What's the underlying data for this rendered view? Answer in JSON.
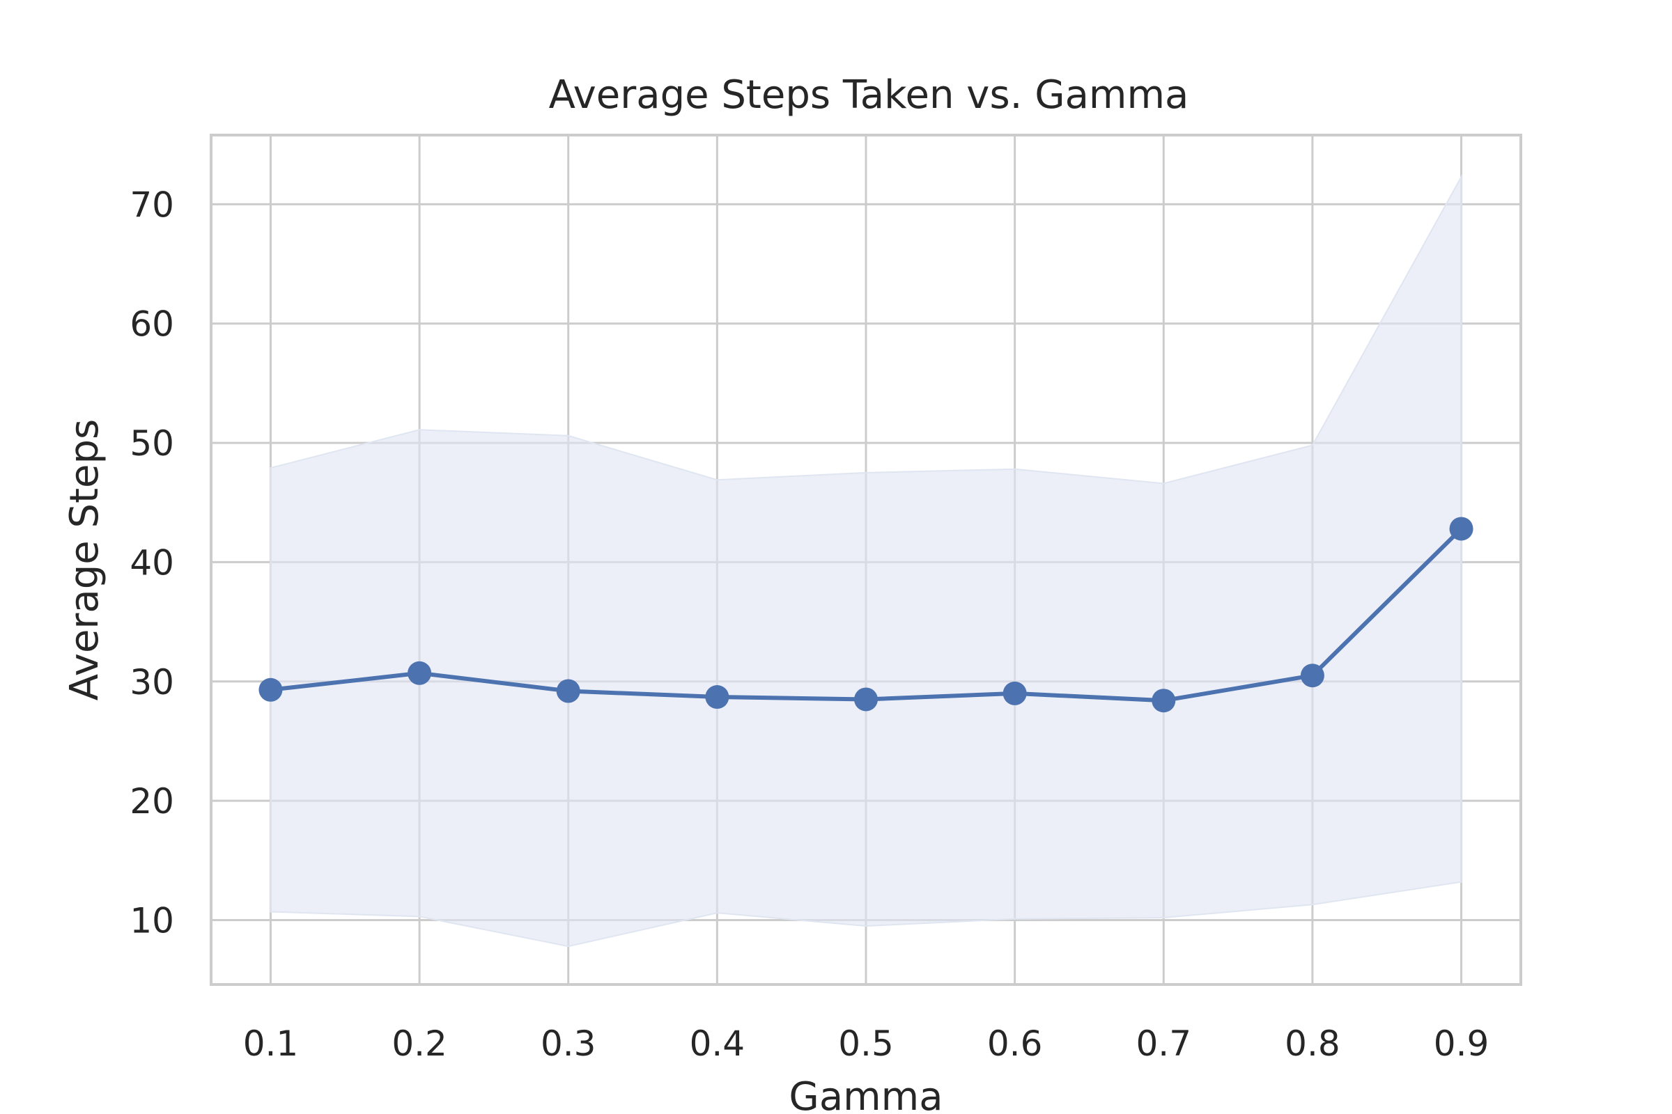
{
  "chart_data": {
    "type": "line",
    "title": "Average Steps Taken vs. Gamma",
    "xlabel": "Gamma",
    "ylabel": "Average Steps",
    "x": [
      0.1,
      0.2,
      0.3,
      0.4,
      0.5,
      0.6,
      0.7,
      0.8,
      0.9
    ],
    "x_tick_labels": [
      "0.1",
      "0.2",
      "0.3",
      "0.4",
      "0.5",
      "0.6",
      "0.7",
      "0.8",
      "0.9"
    ],
    "xlim": [
      0.06,
      0.94
    ],
    "y_ticks": [
      10,
      20,
      30,
      40,
      50,
      60,
      70
    ],
    "y_tick_labels": [
      "10",
      "20",
      "30",
      "40",
      "50",
      "60",
      "70"
    ],
    "ylim": [
      4.6,
      75.8
    ],
    "grid": true,
    "series": [
      {
        "values": [
          29.3,
          30.7,
          29.2,
          28.7,
          28.5,
          29.0,
          28.4,
          30.5,
          42.8
        ],
        "band_upper": [
          47.9,
          51.1,
          50.6,
          46.9,
          47.5,
          47.8,
          46.6,
          49.8,
          72.3
        ],
        "band_lower": [
          10.7,
          10.3,
          7.8,
          10.6,
          9.5,
          10.1,
          10.2,
          11.3,
          13.2
        ],
        "color": "#4c72b0",
        "band_color": "#dfe5f1"
      }
    ]
  }
}
